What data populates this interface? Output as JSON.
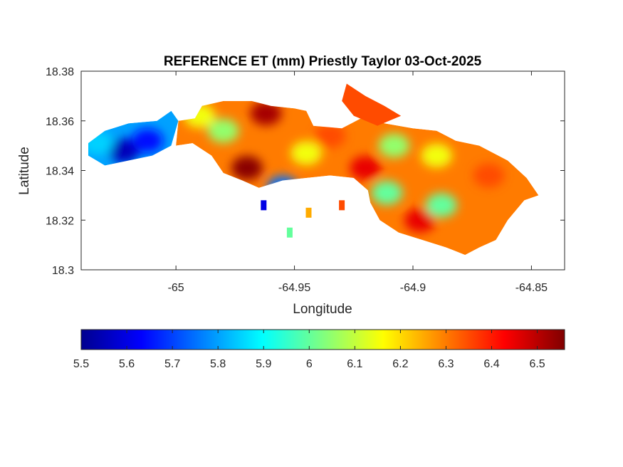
{
  "chart_data": {
    "type": "heatmap",
    "title": "REFERENCE ET (mm) Priestly Taylor 03-Oct-2025",
    "xlabel": "Longitude",
    "ylabel": "Latitude",
    "xlim": [
      -65.04,
      -64.836
    ],
    "ylim": [
      18.3,
      18.38
    ],
    "xticks": [
      {
        "value": -65.0,
        "label": "-65"
      },
      {
        "value": -64.95,
        "label": "-64.95"
      },
      {
        "value": -64.9,
        "label": "-64.9"
      },
      {
        "value": -64.85,
        "label": "-64.85"
      }
    ],
    "yticks": [
      {
        "value": 18.3,
        "label": "18.3"
      },
      {
        "value": 18.32,
        "label": "18.32"
      },
      {
        "value": 18.34,
        "label": "18.34"
      },
      {
        "value": 18.36,
        "label": "18.36"
      },
      {
        "value": 18.38,
        "label": "18.38"
      }
    ],
    "colormap": "jet",
    "colorbar": {
      "orientation": "horizontal",
      "placement": "below",
      "range": [
        5.5,
        6.56
      ],
      "ticks": [
        {
          "value": 5.5,
          "label": "5.5"
        },
        {
          "value": 5.6,
          "label": "5.6"
        },
        {
          "value": 5.7,
          "label": "5.7"
        },
        {
          "value": 5.8,
          "label": "5.8"
        },
        {
          "value": 5.9,
          "label": "5.9"
        },
        {
          "value": 6.0,
          "label": "6"
        },
        {
          "value": 6.1,
          "label": "6.1"
        },
        {
          "value": 6.2,
          "label": "6.2"
        },
        {
          "value": 6.3,
          "label": "6.3"
        },
        {
          "value": 6.4,
          "label": "6.4"
        },
        {
          "value": 6.5,
          "label": "6.5"
        }
      ]
    },
    "regions": [
      {
        "name": "west",
        "approx_value": 5.8,
        "boundary": [
          [
            -65.037,
            18.351
          ],
          [
            -65.03,
            18.356
          ],
          [
            -65.02,
            18.359
          ],
          [
            -65.008,
            18.36
          ],
          [
            -65.002,
            18.364
          ],
          [
            -64.999,
            18.36
          ],
          [
            -65.002,
            18.35
          ],
          [
            -65.01,
            18.346
          ],
          [
            -65.02,
            18.344
          ],
          [
            -65.03,
            18.342
          ],
          [
            -65.037,
            18.346
          ]
        ]
      },
      {
        "name": "main",
        "approx_value": 6.3,
        "boundary": [
          [
            -64.999,
            18.36
          ],
          [
            -64.992,
            18.361
          ],
          [
            -64.989,
            18.366
          ],
          [
            -64.98,
            18.368
          ],
          [
            -64.968,
            18.368
          ],
          [
            -64.96,
            18.366
          ],
          [
            -64.95,
            18.365
          ],
          [
            -64.945,
            18.364
          ],
          [
            -64.942,
            18.358
          ],
          [
            -64.93,
            18.357
          ],
          [
            -64.92,
            18.362
          ],
          [
            -64.912,
            18.359
          ],
          [
            -64.9,
            18.357
          ],
          [
            -64.89,
            18.356
          ],
          [
            -64.882,
            18.352
          ],
          [
            -64.872,
            18.35
          ],
          [
            -64.86,
            18.344
          ],
          [
            -64.852,
            18.337
          ],
          [
            -64.847,
            18.33
          ],
          [
            -64.853,
            18.328
          ],
          [
            -64.86,
            18.32
          ],
          [
            -64.865,
            18.312
          ],
          [
            -64.872,
            18.309
          ],
          [
            -64.878,
            18.306
          ],
          [
            -64.886,
            18.309
          ],
          [
            -64.896,
            18.312
          ],
          [
            -64.906,
            18.315
          ],
          [
            -64.914,
            18.32
          ],
          [
            -64.918,
            18.327
          ],
          [
            -64.919,
            18.332
          ],
          [
            -64.925,
            18.337
          ],
          [
            -64.935,
            18.338
          ],
          [
            -64.945,
            18.337
          ],
          [
            -64.955,
            18.336
          ],
          [
            -64.965,
            18.333
          ],
          [
            -64.972,
            18.336
          ],
          [
            -64.98,
            18.339
          ],
          [
            -64.985,
            18.346
          ],
          [
            -64.993,
            18.351
          ],
          [
            -65.0,
            18.35
          ]
        ]
      },
      {
        "name": "east-arm",
        "approx_value": 6.35,
        "boundary": [
          [
            -64.928,
            18.375
          ],
          [
            -64.92,
            18.37
          ],
          [
            -64.912,
            18.366
          ],
          [
            -64.905,
            18.362
          ],
          [
            -64.915,
            18.358
          ],
          [
            -64.925,
            18.362
          ],
          [
            -64.93,
            18.368
          ]
        ]
      }
    ],
    "hotspots": [
      {
        "lon": -64.962,
        "lat": 18.363,
        "value": 6.52
      },
      {
        "lon": -64.97,
        "lat": 18.341,
        "value": 6.55
      },
      {
        "lon": -64.897,
        "lat": 18.32,
        "value": 6.45
      },
      {
        "lon": -64.92,
        "lat": 18.341,
        "value": 6.45
      },
      {
        "lon": -64.868,
        "lat": 18.338,
        "value": 6.35
      },
      {
        "lon": -65.022,
        "lat": 18.348,
        "value": 5.55
      },
      {
        "lon": -65.012,
        "lat": 18.352,
        "value": 5.65
      },
      {
        "lon": -65.033,
        "lat": 18.351,
        "value": 5.85
      },
      {
        "lon": -64.955,
        "lat": 18.333,
        "value": 5.75
      },
      {
        "lon": -64.98,
        "lat": 18.356,
        "value": 6.05
      },
      {
        "lon": -64.911,
        "lat": 18.331,
        "value": 6.0
      },
      {
        "lon": -64.888,
        "lat": 18.326,
        "value": 6.0
      },
      {
        "lon": -64.908,
        "lat": 18.35,
        "value": 6.05
      },
      {
        "lon": -64.89,
        "lat": 18.346,
        "value": 6.15
      },
      {
        "lon": -64.935,
        "lat": 18.354,
        "value": 6.35
      },
      {
        "lon": -64.99,
        "lat": 18.362,
        "value": 6.15
      },
      {
        "lon": -64.945,
        "lat": 18.347,
        "value": 6.15
      }
    ],
    "islets": [
      {
        "lon": -64.944,
        "lat": 18.323,
        "value": 6.25
      },
      {
        "lon": -64.952,
        "lat": 18.315,
        "value": 6.0
      },
      {
        "lon": -64.93,
        "lat": 18.326,
        "value": 6.35
      },
      {
        "lon": -64.963,
        "lat": 18.326,
        "value": 5.6
      }
    ]
  }
}
